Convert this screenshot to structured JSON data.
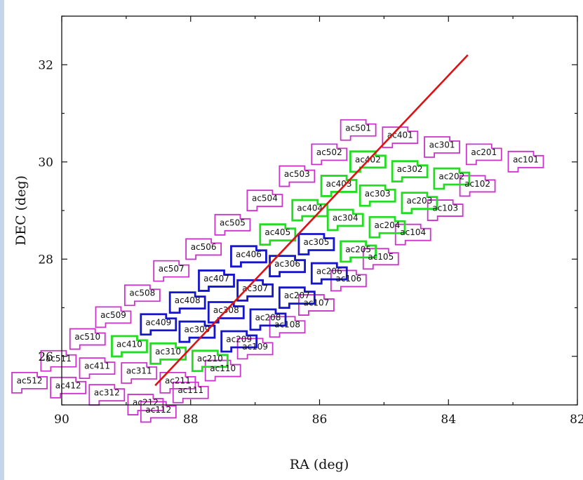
{
  "chart_data": {
    "type": "scatter",
    "xlabel": "RA (deg)",
    "ylabel": "DEC (deg)",
    "xlim": [
      90,
      82
    ],
    "ylim": [
      25,
      33
    ],
    "x_ticks": [
      "90",
      "88",
      "86",
      "84",
      "82"
    ],
    "y_ticks": [
      "26",
      "28",
      "30",
      "32"
    ],
    "colors": {
      "magenta": "#cc33cc",
      "green": "#22dd22",
      "blue": "#1515cc",
      "line": "#dd1111"
    },
    "line": {
      "x": [
        88.55,
        83.7
      ],
      "y": [
        25.4,
        32.2
      ]
    },
    "fields": [
      {
        "name": "ac101",
        "ra": 82.8,
        "dec": 30.05,
        "color": "magenta"
      },
      {
        "name": "ac102",
        "ra": 83.55,
        "dec": 29.55,
        "color": "magenta"
      },
      {
        "name": "ac103",
        "ra": 84.05,
        "dec": 29.05,
        "color": "magenta"
      },
      {
        "name": "ac104",
        "ra": 84.55,
        "dec": 28.55,
        "color": "magenta"
      },
      {
        "name": "ac105",
        "ra": 85.05,
        "dec": 28.05,
        "color": "magenta"
      },
      {
        "name": "ac106",
        "ra": 85.55,
        "dec": 27.6,
        "color": "magenta"
      },
      {
        "name": "ac107",
        "ra": 86.05,
        "dec": 27.1,
        "color": "magenta"
      },
      {
        "name": "ac108",
        "ra": 86.5,
        "dec": 26.65,
        "color": "magenta"
      },
      {
        "name": "ac109",
        "ra": 87.0,
        "dec": 26.2,
        "color": "magenta"
      },
      {
        "name": "ac110",
        "ra": 87.5,
        "dec": 25.75,
        "color": "magenta"
      },
      {
        "name": "ac111",
        "ra": 88.0,
        "dec": 25.3,
        "color": "magenta"
      },
      {
        "name": "ac112",
        "ra": 88.5,
        "dec": 24.9,
        "color": "magenta"
      },
      {
        "name": "ac201",
        "ra": 83.45,
        "dec": 30.2,
        "color": "magenta"
      },
      {
        "name": "ac202",
        "ra": 83.95,
        "dec": 29.7,
        "color": "green"
      },
      {
        "name": "ac203",
        "ra": 84.45,
        "dec": 29.2,
        "color": "green"
      },
      {
        "name": "ac204",
        "ra": 84.95,
        "dec": 28.7,
        "color": "green"
      },
      {
        "name": "ac205",
        "ra": 85.4,
        "dec": 28.2,
        "color": "green"
      },
      {
        "name": "ac206",
        "ra": 85.85,
        "dec": 27.75,
        "color": "blue"
      },
      {
        "name": "ac207",
        "ra": 86.35,
        "dec": 27.25,
        "color": "blue"
      },
      {
        "name": "ac208",
        "ra": 86.8,
        "dec": 26.8,
        "color": "blue"
      },
      {
        "name": "ac209",
        "ra": 87.25,
        "dec": 26.35,
        "color": "blue"
      },
      {
        "name": "ac210",
        "ra": 87.7,
        "dec": 25.95,
        "color": "green"
      },
      {
        "name": "ac211",
        "ra": 88.2,
        "dec": 25.5,
        "color": "magenta"
      },
      {
        "name": "ac212",
        "ra": 88.7,
        "dec": 25.05,
        "color": "magenta"
      },
      {
        "name": "ac301",
        "ra": 84.1,
        "dec": 30.35,
        "color": "magenta"
      },
      {
        "name": "ac302",
        "ra": 84.6,
        "dec": 29.85,
        "color": "green"
      },
      {
        "name": "ac303",
        "ra": 85.1,
        "dec": 29.35,
        "color": "green"
      },
      {
        "name": "ac304",
        "ra": 85.6,
        "dec": 28.85,
        "color": "green"
      },
      {
        "name": "ac305",
        "ra": 86.05,
        "dec": 28.35,
        "color": "blue"
      },
      {
        "name": "ac306",
        "ra": 86.5,
        "dec": 27.9,
        "color": "blue"
      },
      {
        "name": "ac307",
        "ra": 87.0,
        "dec": 27.4,
        "color": "blue"
      },
      {
        "name": "ac308",
        "ra": 87.45,
        "dec": 26.95,
        "color": "blue"
      },
      {
        "name": "ac309",
        "ra": 87.9,
        "dec": 26.55,
        "color": "blue"
      },
      {
        "name": "ac310",
        "ra": 88.35,
        "dec": 26.1,
        "color": "green"
      },
      {
        "name": "ac311",
        "ra": 88.8,
        "dec": 25.7,
        "color": "magenta"
      },
      {
        "name": "ac312",
        "ra": 89.3,
        "dec": 25.25,
        "color": "magenta"
      },
      {
        "name": "ac401",
        "ra": 84.75,
        "dec": 30.55,
        "color": "magenta"
      },
      {
        "name": "ac402",
        "ra": 85.25,
        "dec": 30.05,
        "color": "green"
      },
      {
        "name": "ac403",
        "ra": 85.7,
        "dec": 29.55,
        "color": "green"
      },
      {
        "name": "ac404",
        "ra": 86.15,
        "dec": 29.05,
        "color": "green"
      },
      {
        "name": "ac405",
        "ra": 86.65,
        "dec": 28.55,
        "color": "green"
      },
      {
        "name": "ac406",
        "ra": 87.1,
        "dec": 28.1,
        "color": "blue"
      },
      {
        "name": "ac407",
        "ra": 87.6,
        "dec": 27.6,
        "color": "blue"
      },
      {
        "name": "ac408",
        "ra": 88.05,
        "dec": 27.15,
        "color": "blue"
      },
      {
        "name": "ac409",
        "ra": 88.5,
        "dec": 26.7,
        "color": "blue"
      },
      {
        "name": "ac410",
        "ra": 88.95,
        "dec": 26.25,
        "color": "green"
      },
      {
        "name": "ac411",
        "ra": 89.45,
        "dec": 25.8,
        "color": "magenta"
      },
      {
        "name": "ac412",
        "ra": 89.9,
        "dec": 25.4,
        "color": "magenta"
      },
      {
        "name": "ac501",
        "ra": 85.4,
        "dec": 30.7,
        "color": "magenta"
      },
      {
        "name": "ac502",
        "ra": 85.85,
        "dec": 30.2,
        "color": "magenta"
      },
      {
        "name": "ac503",
        "ra": 86.35,
        "dec": 29.75,
        "color": "magenta"
      },
      {
        "name": "ac504",
        "ra": 86.85,
        "dec": 29.25,
        "color": "magenta"
      },
      {
        "name": "ac505",
        "ra": 87.35,
        "dec": 28.75,
        "color": "magenta"
      },
      {
        "name": "ac506",
        "ra": 87.8,
        "dec": 28.25,
        "color": "magenta"
      },
      {
        "name": "ac507",
        "ra": 88.3,
        "dec": 27.8,
        "color": "magenta"
      },
      {
        "name": "ac508",
        "ra": 88.75,
        "dec": 27.3,
        "color": "magenta"
      },
      {
        "name": "ac509",
        "ra": 89.2,
        "dec": 26.85,
        "color": "magenta"
      },
      {
        "name": "ac510",
        "ra": 89.6,
        "dec": 26.4,
        "color": "magenta"
      },
      {
        "name": "ac511",
        "ra": 90.05,
        "dec": 25.95,
        "color": "magenta"
      },
      {
        "name": "ac512",
        "ra": 90.5,
        "dec": 25.5,
        "color": "magenta"
      }
    ]
  }
}
